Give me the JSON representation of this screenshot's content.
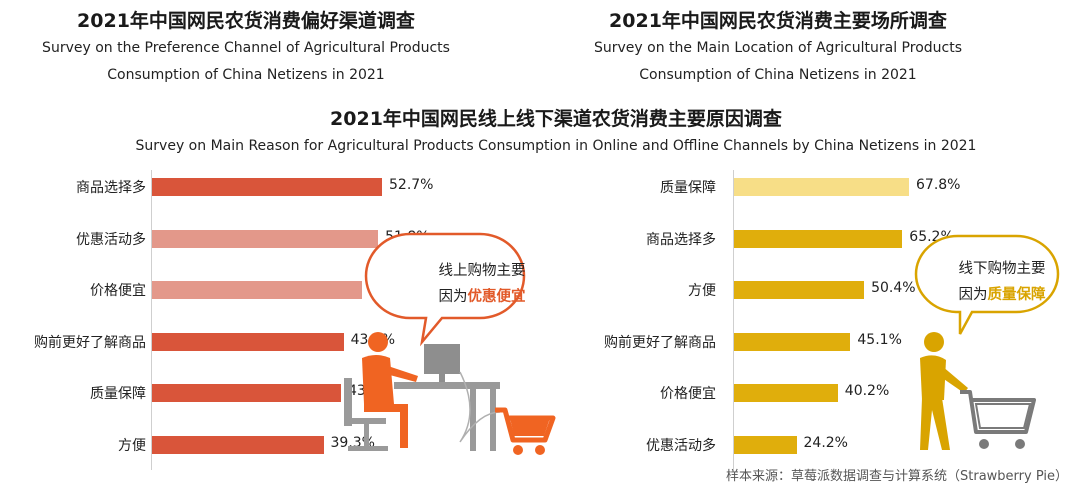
{
  "top_left": {
    "title_cn": "2021年中国网民农货消费偏好渠道调查",
    "title_en_1": "Survey on the Preference Channel of Agricultural Products",
    "title_en_2": "Consumption of China Netizens in 2021"
  },
  "top_right": {
    "title_cn": "2021年中国网民农货消费主要场所调查",
    "title_en_1": "Survey on the Main Location of Agricultural Products",
    "title_en_2": "Consumption of China Netizens in 2021"
  },
  "main": {
    "title_cn": "2021年中国网民线上线下渠道农货消费主要原因调查",
    "title_en": "Survey on Main Reason for Agricultural Products Consumption in Online and Offline Channels by China Netizens in 2021"
  },
  "chart_data": [
    {
      "type": "bar",
      "orientation": "horizontal",
      "categories": [
        "商品选择多",
        "优惠活动多",
        "价格便宜",
        "购前更好了解商品",
        "质量保障",
        "方便"
      ],
      "values": [
        52.7,
        51.8,
        48.2,
        43.9,
        43.3,
        39.3
      ],
      "value_labels": [
        "52.7%",
        "51.8%",
        "48.2%",
        "43.9%",
        "43.3%",
        "39.3%"
      ],
      "colors": [
        "#d9553a",
        "#e3988a",
        "#e3988a",
        "#d9553a",
        "#d9553a",
        "#d9553a"
      ],
      "callout": {
        "line1": "线上购物主要",
        "line2_prefix": "因为",
        "line2_highlight": "优惠便宜"
      }
    },
    {
      "type": "bar",
      "orientation": "horizontal",
      "categories": [
        "质量保障",
        "商品选择多",
        "方便",
        "购前更好了解商品",
        "价格便宜",
        "优惠活动多"
      ],
      "values": [
        67.8,
        65.2,
        50.4,
        45.1,
        40.2,
        24.2
      ],
      "value_labels": [
        "67.8%",
        "65.2%",
        "50.4%",
        "45.1%",
        "40.2%",
        "24.2%"
      ],
      "colors": [
        "#f7de87",
        "#e0ae0c",
        "#e0ae0c",
        "#e0ae0c",
        "#e0ae0c",
        "#e0ae0c"
      ],
      "callout": {
        "line1": "线下购物主要",
        "line2_prefix": "因为",
        "line2_highlight": "质量保障"
      }
    }
  ],
  "source": "样本来源：草莓派数据调查与计算系统（Strawberry Pie）",
  "colors": {
    "online_accent": "#e25a2a",
    "offline_accent": "#d9a400"
  }
}
